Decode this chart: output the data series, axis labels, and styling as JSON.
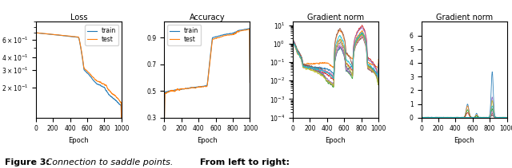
{
  "subplot_titles": [
    "Loss",
    "Accuracy",
    "Gradient norm",
    "Gradient norm"
  ],
  "xlabel": "Epoch",
  "train_color": "#1f77b4",
  "test_color": "#ff7f0e",
  "multi_colors": [
    "#1f77b4",
    "#ff7f0e",
    "#2ca02c",
    "#d62728",
    "#9467bd",
    "#8c564b",
    "#e377c2",
    "#7f7f7f",
    "#bcbd22",
    "#17becf"
  ],
  "figsize": [
    6.4,
    2.11
  ],
  "dpi": 100,
  "caption_bold1": "Figure 3:",
  "caption_italic": " Connection to saddle points.",
  "caption_bold2": " From left to right:"
}
